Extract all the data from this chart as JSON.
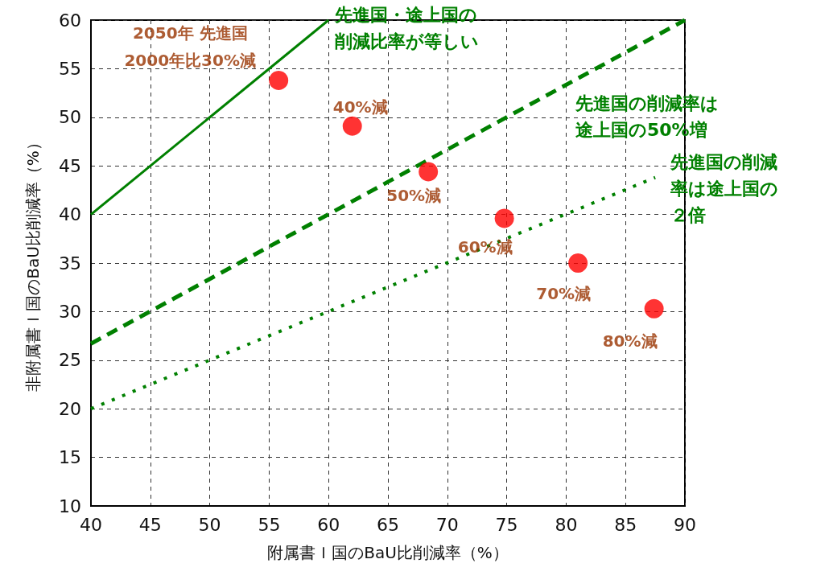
{
  "chart_data": {
    "type": "scatter",
    "xlabel": "附属書Ｉ国のBaU比削減率（%）",
    "ylabel": "非附属書Ｉ国のBaU比削減率（%）",
    "xlim": [
      40,
      90
    ],
    "xticks": [
      40,
      45,
      50,
      55,
      60,
      65,
      70,
      75,
      80,
      85,
      90
    ],
    "ylim": [
      10,
      60
    ],
    "yticks": [
      10,
      15,
      20,
      25,
      30,
      35,
      40,
      45,
      50,
      55,
      60
    ],
    "grid": true,
    "legend": false,
    "annotations": [
      {
        "text": "2050年 先進国\n2000年比30%減",
        "x": 55.8,
        "y": 53.8
      },
      {
        "text": "40%減",
        "x": 62.0,
        "y": 49.1
      },
      {
        "text": "50%減",
        "x": 68.4,
        "y": 44.4
      },
      {
        "text": "60%減",
        "x": 74.8,
        "y": 39.6
      },
      {
        "text": "70%減",
        "x": 81.0,
        "y": 35.0
      },
      {
        "text": "80%減",
        "x": 87.4,
        "y": 30.3
      }
    ],
    "series": [
      {
        "marker": "circle",
        "color": "#ff0000",
        "x": [
          55.8,
          62.0,
          68.4,
          74.8,
          81.0,
          87.4
        ],
        "values": [
          53.8,
          49.1,
          44.4,
          39.6,
          35.0,
          30.3
        ]
      },
      {
        "type": "line",
        "name": "先進国・途上国の削減比率が等しい",
        "marker": "none",
        "line_style": "solid",
        "color": "#008000",
        "x": [
          40,
          60
        ],
        "values": [
          40,
          60
        ]
      },
      {
        "type": "line",
        "name": "先進国の削減率は途上国の50%増",
        "marker": "none",
        "line_style": "dashed",
        "color": "#008000",
        "x": [
          40,
          90
        ],
        "values": [
          26.7,
          60
        ]
      },
      {
        "type": "line",
        "name": "先進国の削減率は途上国の２倍",
        "marker": "none",
        "line_style": "dotted",
        "color": "#008000",
        "x": [
          40,
          87.5
        ],
        "values": [
          20,
          43.8
        ]
      }
    ]
  }
}
